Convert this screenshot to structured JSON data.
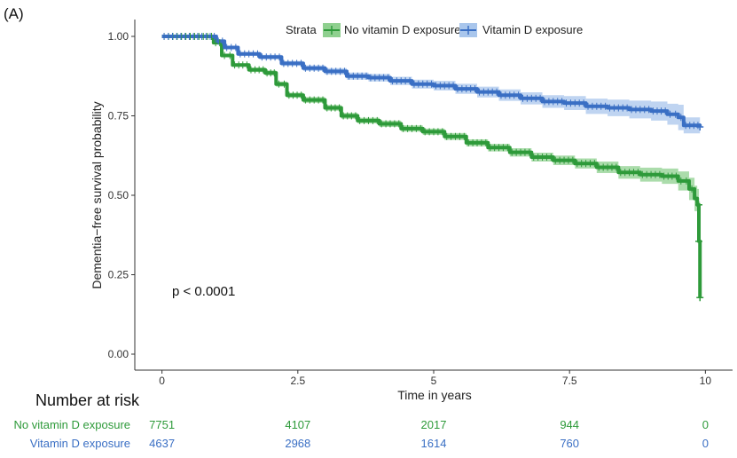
{
  "panel_label": "(A)",
  "risk_table": {
    "title": "Number at risk",
    "rows": [
      {
        "label": "No vitamin D exposure",
        "color": "#2e9a3a",
        "values": [
          "7751",
          "4107",
          "2017",
          "944",
          "0"
        ]
      },
      {
        "label": "Vitamin D exposure",
        "color": "#3a6fc4",
        "values": [
          "4637",
          "2968",
          "1614",
          "760",
          "0"
        ]
      }
    ]
  },
  "chart_data": {
    "type": "line",
    "subtype": "kaplan-meier",
    "title": "",
    "xlabel": "Time in years",
    "ylabel": "Dementia−free survival probability",
    "xlim": [
      -0.5,
      10.5
    ],
    "ylim": [
      0,
      1
    ],
    "x_ticks": [
      0,
      2.5,
      5,
      7.5,
      10
    ],
    "x_tick_labels": [
      "0",
      "2.5",
      "5",
      "7.5",
      "10"
    ],
    "y_ticks": [
      0,
      0.25,
      0.5,
      0.75,
      1.0
    ],
    "y_tick_labels": [
      "0.00",
      "0.25",
      "0.50",
      "0.75",
      "1.00"
    ],
    "grid": false,
    "legend": {
      "title": "Strata",
      "position": "top"
    },
    "annotation": "p < 0.0001",
    "series": [
      {
        "name": "No vitamin D exposure",
        "color": "#2e9a3a",
        "ci_color": "#8fd08f",
        "x": [
          0,
          0.8,
          0.95,
          1.1,
          1.3,
          1.6,
          1.9,
          2.1,
          2.3,
          2.6,
          3.0,
          3.3,
          3.6,
          4.0,
          4.4,
          4.8,
          5.2,
          5.6,
          6.0,
          6.4,
          6.8,
          7.2,
          7.6,
          8.0,
          8.4,
          8.8,
          9.2,
          9.5,
          9.7,
          9.8,
          9.85,
          9.88,
          9.9
        ],
        "y": [
          1.0,
          1.0,
          0.98,
          0.94,
          0.91,
          0.895,
          0.885,
          0.85,
          0.815,
          0.8,
          0.775,
          0.75,
          0.735,
          0.725,
          0.71,
          0.7,
          0.685,
          0.665,
          0.65,
          0.635,
          0.62,
          0.61,
          0.6,
          0.588,
          0.572,
          0.565,
          0.56,
          0.545,
          0.52,
          0.49,
          0.47,
          0.355,
          0.178
        ],
        "ci_lower": [
          1.0,
          1.0,
          0.975,
          0.935,
          0.905,
          0.888,
          0.877,
          0.842,
          0.807,
          0.791,
          0.766,
          0.741,
          0.726,
          0.715,
          0.7,
          0.69,
          0.674,
          0.654,
          0.638,
          0.622,
          0.606,
          0.595,
          0.584,
          0.57,
          0.552,
          0.543,
          0.536,
          0.515,
          0.485,
          0.45,
          0.42,
          0.3,
          0.04
        ],
        "ci_upper": [
          1.0,
          1.0,
          0.985,
          0.945,
          0.915,
          0.902,
          0.893,
          0.858,
          0.823,
          0.809,
          0.784,
          0.759,
          0.744,
          0.735,
          0.72,
          0.71,
          0.696,
          0.676,
          0.662,
          0.648,
          0.634,
          0.625,
          0.616,
          0.606,
          0.592,
          0.587,
          0.584,
          0.575,
          0.555,
          0.53,
          0.52,
          0.48,
          0.45
        ]
      },
      {
        "name": "Vitamin D exposure",
        "color": "#3a6fc4",
        "ci_color": "#a9c6ec",
        "x": [
          0,
          0.85,
          1.0,
          1.15,
          1.4,
          1.8,
          2.2,
          2.6,
          3.0,
          3.4,
          3.8,
          4.2,
          4.6,
          5.0,
          5.4,
          5.8,
          6.2,
          6.6,
          7.0,
          7.4,
          7.8,
          8.2,
          8.6,
          9.0,
          9.3,
          9.5,
          9.6,
          9.9
        ],
        "y": [
          1.0,
          1.0,
          0.985,
          0.965,
          0.945,
          0.935,
          0.915,
          0.9,
          0.89,
          0.875,
          0.87,
          0.86,
          0.85,
          0.845,
          0.835,
          0.825,
          0.815,
          0.805,
          0.795,
          0.79,
          0.78,
          0.775,
          0.77,
          0.765,
          0.755,
          0.745,
          0.72,
          0.715
        ],
        "ci_lower": [
          1.0,
          1.0,
          0.98,
          0.96,
          0.939,
          0.928,
          0.907,
          0.891,
          0.88,
          0.864,
          0.858,
          0.847,
          0.836,
          0.83,
          0.819,
          0.808,
          0.797,
          0.786,
          0.775,
          0.768,
          0.756,
          0.749,
          0.742,
          0.735,
          0.722,
          0.705,
          0.695,
          0.69
        ],
        "ci_upper": [
          1.0,
          1.0,
          0.99,
          0.97,
          0.951,
          0.942,
          0.923,
          0.909,
          0.9,
          0.886,
          0.882,
          0.873,
          0.864,
          0.86,
          0.851,
          0.842,
          0.833,
          0.824,
          0.815,
          0.812,
          0.804,
          0.801,
          0.798,
          0.795,
          0.788,
          0.785,
          0.745,
          0.74
        ]
      }
    ]
  }
}
